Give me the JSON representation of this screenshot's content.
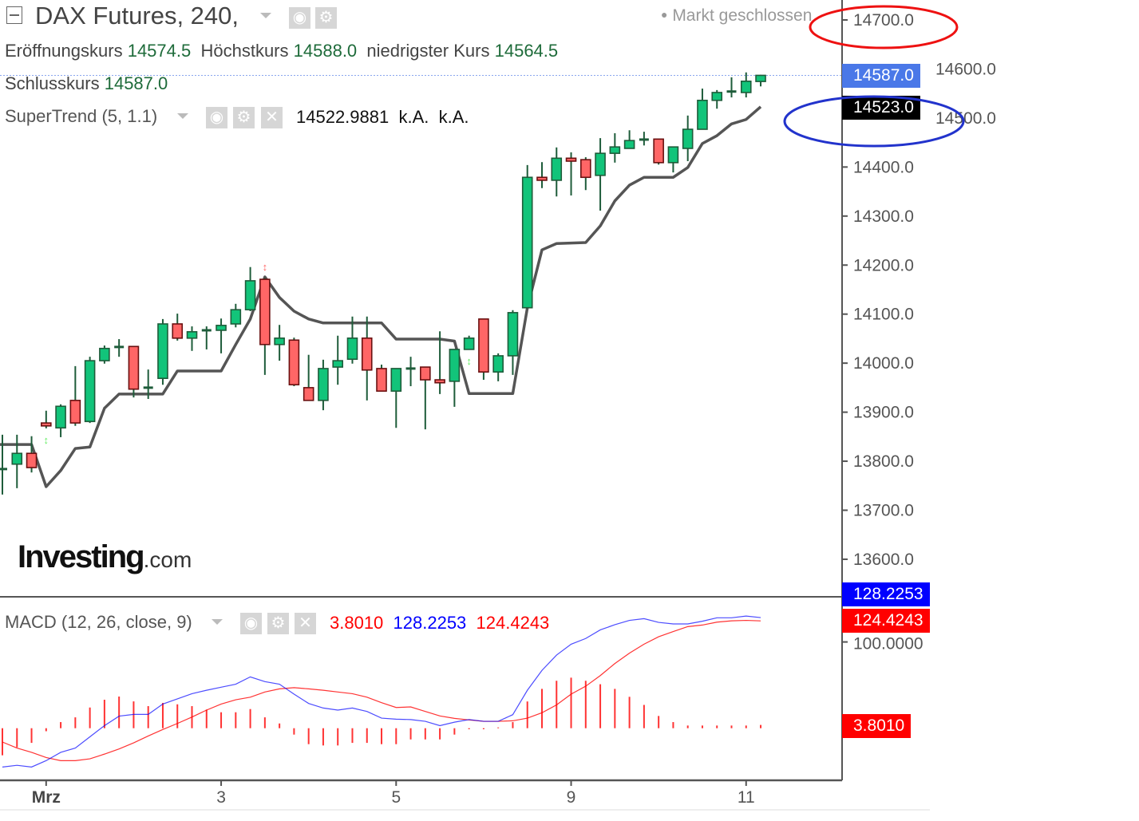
{
  "header": {
    "title": "DAX Futures, 240,",
    "market_status": "Markt geschlossen",
    "ohlc": {
      "open_label": "Eröffnungskurs",
      "open": "14574.5",
      "high_label": "Höchstkurs",
      "high": "14588.0",
      "low_label": "niedrigster Kurs",
      "low": "14564.5",
      "close_label": "Schlusskurs",
      "close": "14587.0"
    }
  },
  "supertrend": {
    "label": "SuperTrend (5, 1.1)",
    "value": "14522.9881",
    "v2": "k.A.",
    "v3": "k.A."
  },
  "macd": {
    "label": "MACD (12, 26, close, 9)",
    "hist_value": "3.8010",
    "macd_value": "128.2253",
    "signal_value": "124.4243"
  },
  "price_axis": {
    "ticks": [
      "14700.0",
      "14600.0",
      "14500.0",
      "14400.0",
      "14300.0",
      "14200.0",
      "14100.0",
      "14000.0",
      "13900.0",
      "13800.0",
      "13700.0",
      "13600.0"
    ],
    "last_price_tag": "14587.0",
    "supertrend_tag": "14523.0"
  },
  "macd_axis": {
    "ticks": [
      "100.0000"
    ],
    "macd_tag": "128.2253",
    "signal_tag": "124.4243",
    "hist_tag": "3.8010"
  },
  "x_axis": {
    "labels": [
      {
        "index": 3,
        "label": "Mrz"
      },
      {
        "index": 15,
        "label": "3"
      },
      {
        "index": 27,
        "label": "5"
      },
      {
        "index": 39,
        "label": "9"
      },
      {
        "index": 51,
        "label": "11"
      }
    ]
  },
  "logo": "Investing.com",
  "colors": {
    "up": "#12c47a",
    "down": "#ff6666",
    "wick": "#1e5c3a",
    "supertrend": "#555555",
    "macd": "#0000ff",
    "signal": "#ff0000",
    "histogram": "#ff3333",
    "last_price": "#4a78e8",
    "annotation_red": "#ee1111",
    "annotation_blue": "#2233cc"
  },
  "chart_data": [
    {
      "type": "candlestick",
      "ylim": [
        13550,
        14750
      ],
      "columns": [
        "open",
        "high",
        "low",
        "close"
      ],
      "candles": [
        [
          13784,
          13854,
          13732,
          13784
        ],
        [
          13794,
          13854,
          13745,
          13816
        ],
        [
          13816,
          13851,
          13777,
          13787
        ],
        [
          13878,
          13903,
          13867,
          13872
        ],
        [
          13868,
          13916,
          13849,
          13912
        ],
        [
          13924,
          13994,
          13872,
          13878
        ],
        [
          13881,
          14013,
          13878,
          14005
        ],
        [
          14005,
          14036,
          13999,
          14030
        ],
        [
          14033,
          14049,
          14013,
          14033
        ],
        [
          14034,
          14034,
          13930,
          13947
        ],
        [
          13950,
          13987,
          13927,
          13950
        ],
        [
          13969,
          14090,
          13956,
          14080
        ],
        [
          14080,
          14101,
          14046,
          14051
        ],
        [
          14051,
          14075,
          14025,
          14064
        ],
        [
          14067,
          14075,
          14028,
          14067
        ],
        [
          14067,
          14091,
          14020,
          14077
        ],
        [
          14080,
          14121,
          14073,
          14109
        ],
        [
          14109,
          14196,
          14106,
          14168
        ],
        [
          14171,
          14174,
          13976,
          14038
        ],
        [
          14038,
          14078,
          14005,
          14051
        ],
        [
          14047,
          14052,
          13953,
          13956
        ],
        [
          13950,
          14017,
          13924,
          13924
        ],
        [
          13924,
          14007,
          13904,
          13989
        ],
        [
          13992,
          14056,
          13956,
          14005
        ],
        [
          14008,
          14095,
          13999,
          14051
        ],
        [
          14051,
          14095,
          13924,
          13986
        ],
        [
          13989,
          13997,
          13943,
          13943
        ],
        [
          13943,
          13989,
          13868,
          13989
        ],
        [
          13989,
          14013,
          13953,
          13989
        ],
        [
          13992,
          13992,
          13865,
          13966
        ],
        [
          13966,
          14065,
          13937,
          13960
        ],
        [
          13963,
          14028,
          13911,
          14028
        ],
        [
          14028,
          14056,
          14028,
          14051
        ],
        [
          14090,
          14090,
          13966,
          13982
        ],
        [
          13982,
          14020,
          13963,
          14015
        ],
        [
          14015,
          14108,
          13976,
          14103
        ],
        [
          14113,
          14404,
          14113,
          14379
        ],
        [
          14379,
          14410,
          14357,
          14373
        ],
        [
          14373,
          14440,
          14340,
          14418
        ],
        [
          14418,
          14430,
          14342,
          14412
        ],
        [
          14415,
          14420,
          14353,
          14379
        ],
        [
          14383,
          14459,
          14311,
          14428
        ],
        [
          14428,
          14469,
          14409,
          14441
        ],
        [
          14438,
          14475,
          14438,
          14454
        ],
        [
          14456,
          14472,
          14444,
          14456
        ],
        [
          14457,
          14457,
          14405,
          14409
        ],
        [
          14409,
          14441,
          14389,
          14441
        ],
        [
          14438,
          14505,
          14412,
          14477
        ],
        [
          14477,
          14560,
          14477,
          14536
        ],
        [
          14536,
          14557,
          14519,
          14552
        ],
        [
          14554,
          14583,
          14542,
          14554
        ],
        [
          14552,
          14593,
          14542,
          14575
        ],
        [
          14574.5,
          14588,
          14564.5,
          14587
        ]
      ],
      "supertrend": [
        13834,
        13834,
        13834,
        13748,
        13781,
        13826,
        13829,
        13908,
        13937,
        13937,
        13937,
        13937,
        13984,
        13984,
        13984,
        13984,
        14038,
        14090,
        14176,
        14134,
        14106,
        14090,
        14082,
        14082,
        14082,
        14082,
        14082,
        14049,
        14049,
        14049,
        14049,
        14045,
        13938,
        13938,
        13938,
        13938,
        14113,
        14231,
        14244,
        14245,
        14246,
        14280,
        14331,
        14363,
        14379,
        14379,
        14379,
        14399,
        14448,
        14464,
        14488,
        14497,
        14523
      ],
      "signals": [
        {
          "index": 3,
          "type": "buy"
        },
        {
          "index": 18,
          "type": "sell"
        },
        {
          "index": 32,
          "type": "buy"
        }
      ],
      "last_price": 14587.0
    },
    {
      "type": "line",
      "ylim": [
        -70,
        145
      ],
      "macd": [
        -45,
        -43,
        -45,
        -37.6,
        -28,
        -23,
        -10,
        3,
        14,
        16,
        16,
        28,
        34,
        40,
        44,
        47.5,
        51,
        59.5,
        54,
        51,
        39.5,
        28.7,
        23.4,
        21,
        23.4,
        19.4,
        11.7,
        10.5,
        10,
        8,
        3,
        7,
        10,
        8,
        8,
        15.7,
        44,
        67,
        84.8,
        97.4,
        104,
        114,
        120,
        125,
        127,
        122.7,
        120.9,
        120.9,
        124,
        128,
        128,
        130,
        128.2253
      ],
      "signal": [
        -16,
        -23,
        -28,
        -34,
        -37.6,
        -37.6,
        -35.5,
        -30,
        -24,
        -17,
        -9,
        -1.5,
        5.5,
        13,
        21,
        28,
        33,
        36,
        42,
        45.6,
        47,
        45.6,
        44,
        42,
        40,
        36,
        29.6,
        24,
        24.7,
        19.4,
        14.2,
        11.4,
        9.6,
        8,
        8,
        8.6,
        11.7,
        17.9,
        27,
        39.5,
        48.7,
        61,
        75,
        87,
        97.4,
        106,
        112,
        117.8,
        119.6,
        123,
        124.5,
        125,
        124.4243
      ],
      "histogram": [
        -31.4,
        -22.2,
        -17,
        -3.5,
        7.1,
        12.6,
        24,
        33,
        36.7,
        31.1,
        25.6,
        29.3,
        27.7,
        25.6,
        21.6,
        18.5,
        18.5,
        22.2,
        12.6,
        5.5,
        -7.4,
        -18.5,
        -20,
        -20,
        -17,
        -17,
        -18.5,
        -18.5,
        -13,
        -13,
        -13,
        -7.4,
        -1.2,
        -1.2,
        0,
        7.1,
        31,
        45.6,
        55,
        58.6,
        55,
        51,
        45.6,
        36.4,
        27,
        14.2,
        7.1,
        3.1,
        3.1,
        3.1,
        3.1,
        3.1,
        3.801
      ]
    }
  ]
}
